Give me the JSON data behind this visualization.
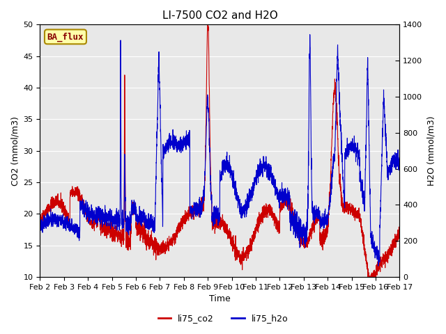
{
  "title": "LI-7500 CO2 and H2O",
  "xlabel": "Time",
  "ylabel_left": "CO2 (mmol/m3)",
  "ylabel_right": "H2O (mmol/m3)",
  "ylim_left": [
    10,
    50
  ],
  "ylim_right": [
    0,
    1400
  ],
  "yticks_left": [
    10,
    15,
    20,
    25,
    30,
    35,
    40,
    45,
    50
  ],
  "yticks_right": [
    0,
    200,
    400,
    600,
    800,
    1000,
    1200,
    1400
  ],
  "xtick_labels": [
    "Feb 2",
    "Feb 3",
    "Feb 4",
    "Feb 5",
    "Feb 6",
    "Feb 7",
    "Feb 8",
    "Feb 9",
    "Feb 10",
    "Feb 11",
    "Feb 12",
    "Feb 13",
    "Feb 14",
    "Feb 15",
    "Feb 16",
    "Feb 17"
  ],
  "color_co2": "#cc0000",
  "color_h2o": "#0000cc",
  "bg_color": "#e8e8e8",
  "legend_label_co2": "li75_co2",
  "legend_label_h2o": "li75_h2o",
  "badge_text": "BA_flux",
  "badge_bg": "#ffffaa",
  "badge_border": "#aa8800",
  "badge_text_color": "#880000"
}
